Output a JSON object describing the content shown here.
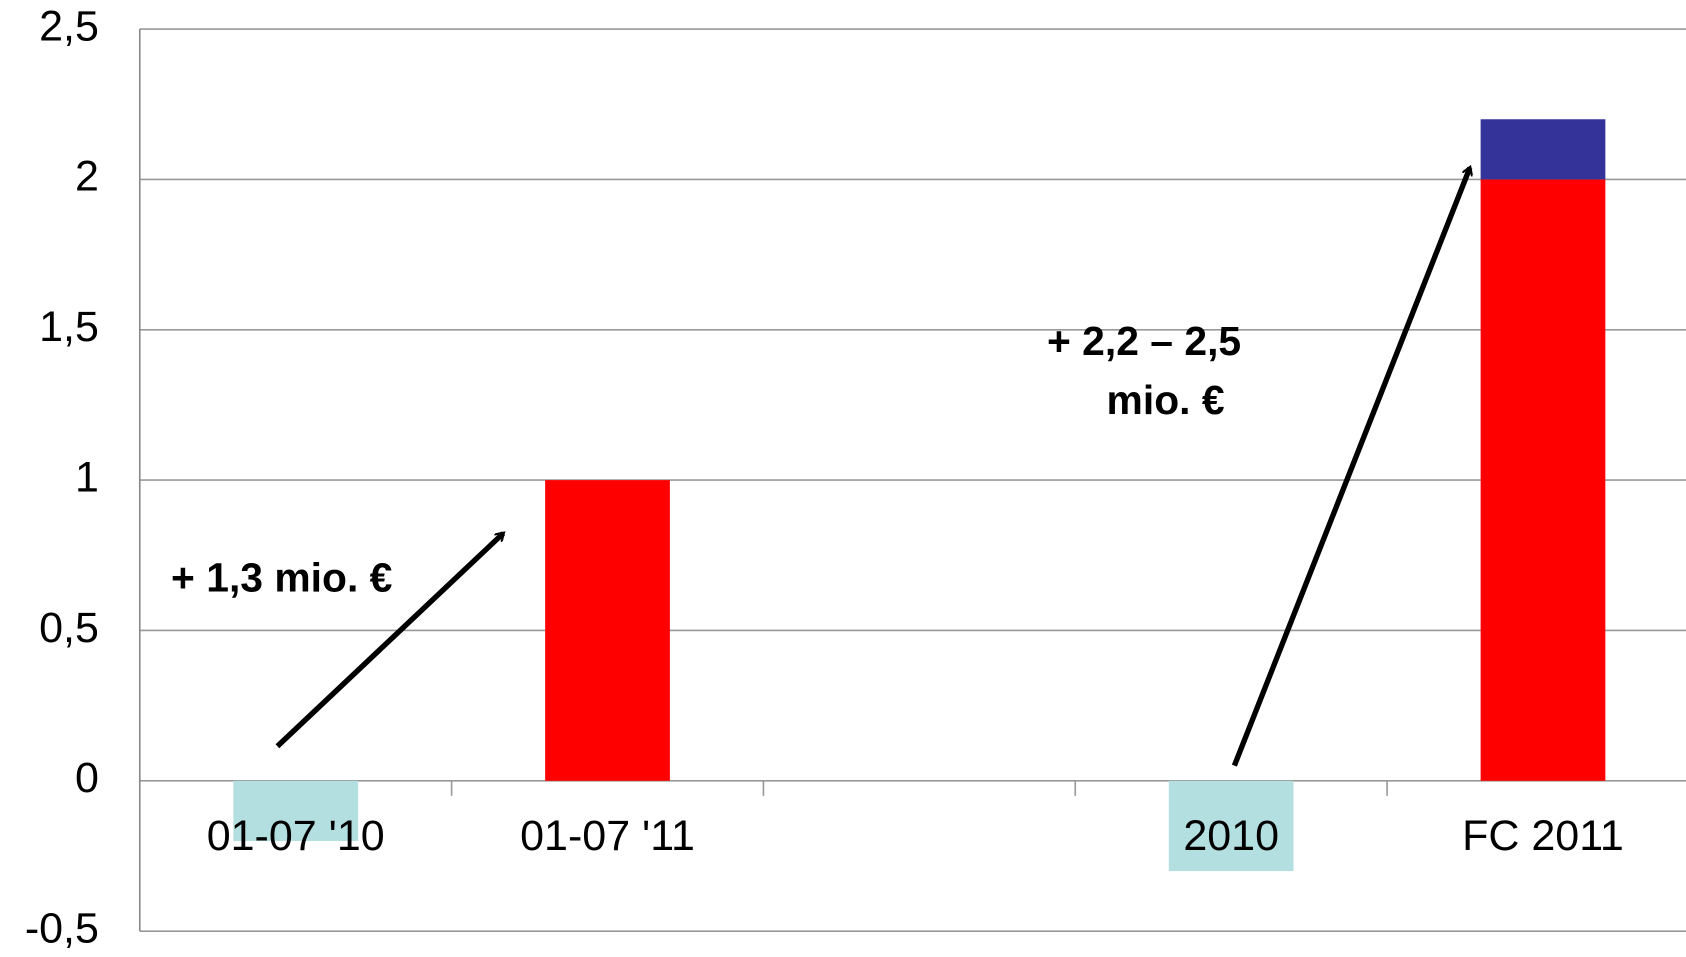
{
  "chart_data": {
    "type": "bar",
    "stacked": true,
    "categories": [
      "01-07 '10",
      "01-07 '11",
      null,
      "2010",
      "FC 2011"
    ],
    "series": [
      {
        "color": "#ff0000",
        "values": [
          null,
          1,
          null,
          null,
          2
        ]
      },
      {
        "color": "#333399",
        "values": [
          null,
          null,
          null,
          null,
          0.2
        ]
      },
      {
        "color": "#b3dfe0",
        "values": [
          -0.2,
          null,
          null,
          -0.3,
          null
        ]
      }
    ],
    "ylim": [
      -0.5,
      2.5
    ],
    "yticks": [
      {
        "value": -0.5,
        "label": "-0,5"
      },
      0,
      {
        "value": 0.5,
        "label": "0,5"
      },
      1,
      {
        "value": 1.5,
        "label": "1,5"
      },
      2,
      {
        "value": 2.5,
        "label": "2,5"
      }
    ],
    "grid": true,
    "annotations": [
      {
        "text": [
          "+ 1,3 mio. €"
        ]
      },
      {
        "text": [
          "+ 2,2 – 2,5",
          "mio. €"
        ]
      }
    ]
  }
}
